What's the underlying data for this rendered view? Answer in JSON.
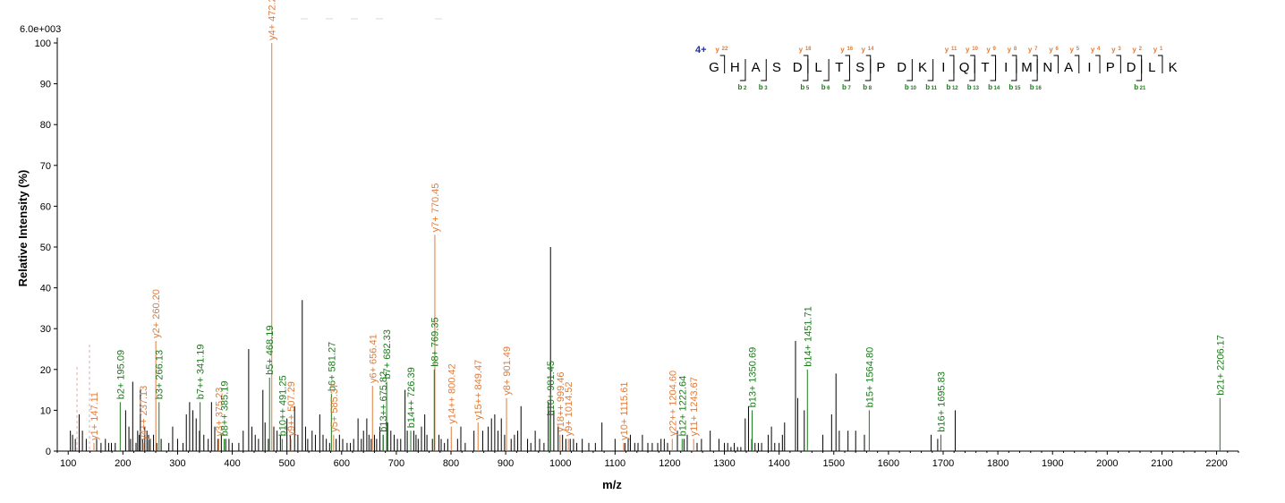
{
  "chart_data": {
    "type": "bar",
    "scale_label": "6.0e+003",
    "ylabel": "Relative   Intensity (%)",
    "xlabel": "m/z",
    "xlim": [
      80,
      2240
    ],
    "ylim": [
      0,
      100
    ],
    "x_ticks": [
      100,
      200,
      300,
      400,
      500,
      600,
      700,
      800,
      900,
      1000,
      1100,
      1200,
      1300,
      1400,
      1500,
      1600,
      1700,
      1800,
      1900,
      2000,
      2100,
      2200
    ],
    "y_ticks": [
      0,
      10,
      20,
      30,
      40,
      50,
      60,
      70,
      80,
      90,
      100
    ],
    "colors": {
      "b": "#1a7a1a",
      "y": "#e07b39",
      "other": "#000000",
      "charge": "#1f2f9f"
    },
    "unassigned_peaks": [
      [
        104,
        5
      ],
      [
        108,
        4
      ],
      [
        113,
        3
      ],
      [
        120,
        9
      ],
      [
        126,
        5
      ],
      [
        133,
        3
      ],
      [
        152,
        3
      ],
      [
        160,
        2
      ],
      [
        168,
        3
      ],
      [
        174,
        2
      ],
      [
        179,
        2
      ],
      [
        186,
        2
      ],
      [
        205,
        10
      ],
      [
        211,
        6
      ],
      [
        214,
        3
      ],
      [
        218,
        17
      ],
      [
        224,
        2
      ],
      [
        227,
        5
      ],
      [
        230,
        4
      ],
      [
        232,
        15
      ],
      [
        236,
        3
      ],
      [
        240,
        6
      ],
      [
        244,
        5
      ],
      [
        247,
        4
      ],
      [
        250,
        3
      ],
      [
        256,
        4
      ],
      [
        262,
        2
      ],
      [
        270,
        3
      ],
      [
        284,
        2
      ],
      [
        291,
        6
      ],
      [
        300,
        3
      ],
      [
        310,
        2
      ],
      [
        316,
        9
      ],
      [
        322,
        12
      ],
      [
        328,
        10
      ],
      [
        334,
        8
      ],
      [
        340,
        5
      ],
      [
        348,
        4
      ],
      [
        356,
        3
      ],
      [
        362,
        12
      ],
      [
        368,
        6
      ],
      [
        374,
        3
      ],
      [
        380,
        4
      ],
      [
        388,
        3
      ],
      [
        394,
        3
      ],
      [
        400,
        2
      ],
      [
        412,
        2
      ],
      [
        420,
        5
      ],
      [
        430,
        25
      ],
      [
        436,
        6
      ],
      [
        442,
        4
      ],
      [
        448,
        3
      ],
      [
        456,
        15
      ],
      [
        460,
        7
      ],
      [
        466,
        3
      ],
      [
        476,
        6
      ],
      [
        482,
        5
      ],
      [
        488,
        4
      ],
      [
        500,
        8
      ],
      [
        506,
        4
      ],
      [
        514,
        11
      ],
      [
        520,
        4
      ],
      [
        528,
        37
      ],
      [
        534,
        6
      ],
      [
        538,
        3
      ],
      [
        546,
        5
      ],
      [
        552,
        4
      ],
      [
        560,
        9
      ],
      [
        566,
        4
      ],
      [
        572,
        3
      ],
      [
        578,
        2
      ],
      [
        590,
        3
      ],
      [
        596,
        4
      ],
      [
        602,
        3
      ],
      [
        610,
        2
      ],
      [
        616,
        2
      ],
      [
        622,
        3
      ],
      [
        630,
        8
      ],
      [
        636,
        3
      ],
      [
        640,
        5
      ],
      [
        646,
        8
      ],
      [
        650,
        4
      ],
      [
        654,
        3
      ],
      [
        660,
        4
      ],
      [
        664,
        3
      ],
      [
        670,
        6
      ],
      [
        676,
        4
      ],
      [
        684,
        7
      ],
      [
        690,
        5
      ],
      [
        696,
        4
      ],
      [
        702,
        3
      ],
      [
        708,
        3
      ],
      [
        716,
        15
      ],
      [
        720,
        5
      ],
      [
        732,
        5
      ],
      [
        736,
        4
      ],
      [
        740,
        3
      ],
      [
        746,
        6
      ],
      [
        752,
        9
      ],
      [
        756,
        4
      ],
      [
        766,
        3
      ],
      [
        778,
        4
      ],
      [
        782,
        3
      ],
      [
        788,
        2
      ],
      [
        794,
        3
      ],
      [
        812,
        3
      ],
      [
        818,
        6
      ],
      [
        826,
        2
      ],
      [
        842,
        5
      ],
      [
        858,
        5
      ],
      [
        868,
        6
      ],
      [
        874,
        8
      ],
      [
        880,
        9
      ],
      [
        886,
        5
      ],
      [
        892,
        8
      ],
      [
        898,
        4
      ],
      [
        910,
        3
      ],
      [
        916,
        4
      ],
      [
        922,
        5
      ],
      [
        928,
        11
      ],
      [
        940,
        3
      ],
      [
        946,
        2
      ],
      [
        954,
        5
      ],
      [
        962,
        3
      ],
      [
        970,
        2
      ],
      [
        978,
        12
      ],
      [
        982,
        50
      ],
      [
        988,
        10
      ],
      [
        996,
        6
      ],
      [
        1004,
        4
      ],
      [
        1010,
        3
      ],
      [
        1018,
        3
      ],
      [
        1024,
        3
      ],
      [
        1030,
        2
      ],
      [
        1040,
        3
      ],
      [
        1052,
        2
      ],
      [
        1064,
        2
      ],
      [
        1076,
        7
      ],
      [
        1100,
        3
      ],
      [
        1118,
        2
      ],
      [
        1124,
        3
      ],
      [
        1128,
        4
      ],
      [
        1136,
        2
      ],
      [
        1142,
        2
      ],
      [
        1150,
        4
      ],
      [
        1160,
        2
      ],
      [
        1168,
        2
      ],
      [
        1178,
        2
      ],
      [
        1184,
        3
      ],
      [
        1190,
        3
      ],
      [
        1196,
        2
      ],
      [
        1214,
        5
      ],
      [
        1226,
        3
      ],
      [
        1232,
        4
      ],
      [
        1250,
        2
      ],
      [
        1258,
        3
      ],
      [
        1274,
        5
      ],
      [
        1290,
        3
      ],
      [
        1300,
        2
      ],
      [
        1306,
        2
      ],
      [
        1312,
        1
      ],
      [
        1318,
        2
      ],
      [
        1324,
        1
      ],
      [
        1330,
        1
      ],
      [
        1338,
        8
      ],
      [
        1344,
        11
      ],
      [
        1350,
        3
      ],
      [
        1356,
        2
      ],
      [
        1362,
        2
      ],
      [
        1368,
        2
      ],
      [
        1380,
        4
      ],
      [
        1386,
        6
      ],
      [
        1392,
        2
      ],
      [
        1400,
        2
      ],
      [
        1406,
        4
      ],
      [
        1410,
        7
      ],
      [
        1430,
        27
      ],
      [
        1434,
        13
      ],
      [
        1446,
        10
      ],
      [
        1480,
        4
      ],
      [
        1496,
        9
      ],
      [
        1504,
        19
      ],
      [
        1510,
        5
      ],
      [
        1526,
        5
      ],
      [
        1540,
        5
      ],
      [
        1556,
        4
      ],
      [
        1678,
        4
      ],
      [
        1690,
        3
      ],
      [
        1722,
        10
      ]
    ],
    "labeled_peaks": [
      {
        "x": 147.11,
        "y": 2,
        "ion": "y",
        "label": "y1+ 147.11"
      },
      {
        "x": 195.09,
        "y": 12,
        "ion": "b",
        "label": "b2+ 195.09"
      },
      {
        "x": 237.13,
        "y": 2,
        "ion": "y",
        "label": "y4++ 237.13"
      },
      {
        "x": 260.2,
        "y": 27,
        "ion": "y",
        "label": "y2+ 260.20"
      },
      {
        "x": 266.13,
        "y": 12,
        "ion": "b",
        "label": "b3+ 266.13"
      },
      {
        "x": 341.19,
        "y": 12,
        "ion": "b",
        "label": "b7++ 341.19"
      },
      {
        "x": 375.23,
        "y": 3,
        "ion": "y",
        "label": "y3+ 375.23"
      },
      {
        "x": 385.19,
        "y": 3,
        "ion": "b",
        "label": "b8++ 385.19"
      },
      {
        "x": 472.28,
        "y": 100,
        "ion": "y",
        "label": "y4+ 472.28"
      },
      {
        "x": 468.19,
        "y": 18,
        "ion": "b",
        "label": "b5+ 468.19"
      },
      {
        "x": 491.25,
        "y": 3,
        "ion": "b",
        "label": "b10++ 491.25"
      },
      {
        "x": 507.29,
        "y": 3,
        "ion": "y",
        "label": "y9++ 507.29"
      },
      {
        "x": 581.27,
        "y": 14,
        "ion": "b",
        "label": "b6+ 581.27"
      },
      {
        "x": 585.37,
        "y": 4,
        "ion": "y",
        "label": "y5+ 585.37"
      },
      {
        "x": 656.41,
        "y": 16,
        "ion": "y",
        "label": "y6+ 656.41"
      },
      {
        "x": 675.82,
        "y": 4,
        "ion": "b",
        "label": "b13++ 675.82"
      },
      {
        "x": 682.33,
        "y": 17,
        "ion": "b",
        "label": "b7+ 682.33"
      },
      {
        "x": 726.39,
        "y": 5,
        "ion": "b",
        "label": "b14++ 726.39"
      },
      {
        "x": 770.45,
        "y": 53,
        "ion": "y",
        "label": "y7+ 770.45"
      },
      {
        "x": 769.35,
        "y": 20,
        "ion": "b",
        "label": "b8+ 769.35"
      },
      {
        "x": 800.42,
        "y": 6,
        "ion": "y",
        "label": "y14++ 800.42"
      },
      {
        "x": 849.47,
        "y": 7,
        "ion": "y",
        "label": "y15++ 849.47"
      },
      {
        "x": 901.49,
        "y": 13,
        "ion": "y",
        "label": "y8+ 901.49"
      },
      {
        "x": 981.45,
        "y": 8,
        "ion": "b",
        "label": "b10+ 981.45"
      },
      {
        "x": 999.46,
        "y": 4,
        "ion": "y",
        "label": "y18++ 999.46"
      },
      {
        "x": 1014.52,
        "y": 3,
        "ion": "y",
        "label": "y9+ 1014.52"
      },
      {
        "x": 1115.61,
        "y": 2,
        "ion": "y",
        "label": "y10+ 1115.61"
      },
      {
        "x": 1204.6,
        "y": 3,
        "ion": "y",
        "label": "y22++ 1204.60"
      },
      {
        "x": 1222.64,
        "y": 3,
        "ion": "b",
        "label": "b12+ 1222.64"
      },
      {
        "x": 1243.67,
        "y": 3,
        "ion": "y",
        "label": "y11+ 1243.67"
      },
      {
        "x": 1350.69,
        "y": 10,
        "ion": "b",
        "label": "b13+ 1350.69"
      },
      {
        "x": 1451.71,
        "y": 20,
        "ion": "b",
        "label": "b14+ 1451.71"
      },
      {
        "x": 1564.8,
        "y": 10,
        "ion": "b",
        "label": "b15+ 1564.80"
      },
      {
        "x": 1695.83,
        "y": 4,
        "ion": "b",
        "label": "b16+ 1695.83"
      },
      {
        "x": 2206.17,
        "y": 13,
        "ion": "b",
        "label": "b21+ 2206.17"
      }
    ]
  },
  "sequence": {
    "charge": "4+",
    "residues": [
      "G",
      "H",
      "A",
      "S",
      "D",
      "L",
      "T",
      "S",
      "P",
      "D",
      "K",
      "I",
      "Q",
      "T",
      "I",
      "M",
      "N",
      "A",
      "I",
      "P",
      "D",
      "L",
      "K"
    ],
    "y_marks": [
      {
        "after": 1,
        "label": "y",
        "index": "22"
      },
      {
        "after": 5,
        "label": "y",
        "index": "18"
      },
      {
        "after": 7,
        "label": "y",
        "index": "16"
      },
      {
        "after": 8,
        "label": "y",
        "index": "14"
      },
      {
        "after": 12,
        "label": "y",
        "index": "11"
      },
      {
        "after": 13,
        "label": "y",
        "index": "10"
      },
      {
        "after": 14,
        "label": "y",
        "index": "9"
      },
      {
        "after": 15,
        "label": "y",
        "index": "8"
      },
      {
        "after": 16,
        "label": "y",
        "index": "7"
      },
      {
        "after": 17,
        "label": "y",
        "index": "6"
      },
      {
        "after": 18,
        "label": "y",
        "index": "5"
      },
      {
        "after": 19,
        "label": "y",
        "index": "4"
      },
      {
        "after": 20,
        "label": "y",
        "index": "3"
      },
      {
        "after": 21,
        "label": "y",
        "index": "2"
      },
      {
        "after": 22,
        "label": "y",
        "index": "1"
      }
    ],
    "b_marks": [
      {
        "after": 2,
        "label": "b",
        "index": "2"
      },
      {
        "after": 3,
        "label": "b",
        "index": "3"
      },
      {
        "after": 5,
        "label": "b",
        "index": "5"
      },
      {
        "after": 6,
        "label": "b",
        "index": "6"
      },
      {
        "after": 7,
        "label": "b",
        "index": "7"
      },
      {
        "after": 8,
        "label": "b",
        "index": "8"
      },
      {
        "after": 10,
        "label": "b",
        "index": "10"
      },
      {
        "after": 11,
        "label": "b",
        "index": "11"
      },
      {
        "after": 12,
        "label": "b",
        "index": "12"
      },
      {
        "after": 13,
        "label": "b",
        "index": "13"
      },
      {
        "after": 14,
        "label": "b",
        "index": "14"
      },
      {
        "after": 15,
        "label": "b",
        "index": "15"
      },
      {
        "after": 16,
        "label": "b",
        "index": "16"
      },
      {
        "after": 21,
        "label": "b",
        "index": "21"
      }
    ]
  }
}
